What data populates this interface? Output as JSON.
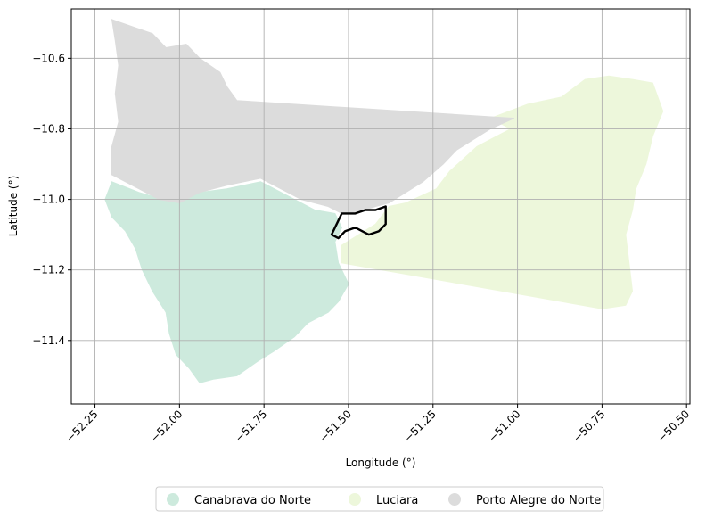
{
  "chart_data": {
    "type": "map",
    "xlabel": "Longitude (°)",
    "ylabel": "Latitude (°)",
    "xlim": [
      -52.32,
      -50.49
    ],
    "ylim": [
      -11.58,
      -10.46
    ],
    "xticks": [
      -52.25,
      -52.0,
      -51.75,
      -51.5,
      -51.25,
      -51.0,
      -50.75,
      -50.5
    ],
    "xtick_labels": [
      "−52.25",
      "−52.00",
      "−51.75",
      "−51.50",
      "−51.25",
      "−51.00",
      "−50.75",
      "−50.50"
    ],
    "yticks": [
      -10.6,
      -10.8,
      -11.0,
      -11.2,
      -11.4
    ],
    "ytick_labels": [
      "−10.6",
      "−10.8",
      "−11.0",
      "−11.2",
      "−11.4"
    ],
    "grid": true,
    "legend_position": "bottom-center",
    "regions": [
      {
        "name": "Canabrava do Norte",
        "color": "#cdeadd",
        "polygon": [
          [
            -52.2,
            -10.95
          ],
          [
            -52.12,
            -10.98
          ],
          [
            -52.05,
            -11.0
          ],
          [
            -52.0,
            -11.01
          ],
          [
            -51.94,
            -10.98
          ],
          [
            -51.86,
            -10.97
          ],
          [
            -51.76,
            -10.95
          ],
          [
            -51.68,
            -10.99
          ],
          [
            -51.6,
            -11.03
          ],
          [
            -51.54,
            -11.04
          ],
          [
            -51.52,
            -11.08
          ],
          [
            -51.54,
            -11.12
          ],
          [
            -51.53,
            -11.18
          ],
          [
            -51.5,
            -11.24
          ],
          [
            -51.53,
            -11.29
          ],
          [
            -51.56,
            -11.32
          ],
          [
            -51.62,
            -11.35
          ],
          [
            -51.66,
            -11.39
          ],
          [
            -51.72,
            -11.43
          ],
          [
            -51.77,
            -11.46
          ],
          [
            -51.83,
            -11.5
          ],
          [
            -51.9,
            -11.51
          ],
          [
            -51.94,
            -11.52
          ],
          [
            -51.97,
            -11.48
          ],
          [
            -52.01,
            -11.44
          ],
          [
            -52.03,
            -11.38
          ],
          [
            -52.04,
            -11.32
          ],
          [
            -52.08,
            -11.26
          ],
          [
            -52.11,
            -11.2
          ],
          [
            -52.13,
            -11.14
          ],
          [
            -52.16,
            -11.09
          ],
          [
            -52.2,
            -11.05
          ],
          [
            -52.22,
            -11.0
          ]
        ]
      },
      {
        "name": "Luciara",
        "color": "#edf7db",
        "polygon": [
          [
            -51.08,
            -10.77
          ],
          [
            -50.97,
            -10.73
          ],
          [
            -50.87,
            -10.71
          ],
          [
            -50.8,
            -10.66
          ],
          [
            -50.73,
            -10.65
          ],
          [
            -50.66,
            -10.66
          ],
          [
            -50.6,
            -10.67
          ],
          [
            -50.57,
            -10.75
          ],
          [
            -50.6,
            -10.82
          ],
          [
            -50.62,
            -10.9
          ],
          [
            -50.65,
            -10.97
          ],
          [
            -50.66,
            -11.03
          ],
          [
            -50.68,
            -11.1
          ],
          [
            -50.67,
            -11.18
          ],
          [
            -50.66,
            -11.26
          ],
          [
            -50.68,
            -11.3
          ],
          [
            -50.75,
            -11.31
          ],
          [
            -51.52,
            -11.18
          ],
          [
            -51.52,
            -11.13
          ],
          [
            -51.42,
            -11.07
          ],
          [
            -51.38,
            -11.02
          ],
          [
            -51.33,
            -11.01
          ],
          [
            -51.24,
            -10.97
          ],
          [
            -51.2,
            -10.92
          ],
          [
            -51.12,
            -10.85
          ],
          [
            -51.02,
            -10.8
          ]
        ]
      },
      {
        "name": "Porto Alegre do Norte",
        "color": "#dcdcdc",
        "polygon": [
          [
            -52.2,
            -10.49
          ],
          [
            -52.14,
            -10.51
          ],
          [
            -52.08,
            -10.53
          ],
          [
            -52.04,
            -10.57
          ],
          [
            -51.98,
            -10.56
          ],
          [
            -51.94,
            -10.6
          ],
          [
            -51.88,
            -10.64
          ],
          [
            -51.86,
            -10.68
          ],
          [
            -51.83,
            -10.72
          ],
          [
            -51.01,
            -10.77
          ],
          [
            -51.08,
            -10.8
          ],
          [
            -51.18,
            -10.86
          ],
          [
            -51.22,
            -10.9
          ],
          [
            -51.28,
            -10.95
          ],
          [
            -51.33,
            -10.98
          ],
          [
            -51.38,
            -11.01
          ],
          [
            -51.42,
            -11.02
          ],
          [
            -51.48,
            -11.04
          ],
          [
            -51.52,
            -11.04
          ],
          [
            -51.56,
            -11.02
          ],
          [
            -51.64,
            -11.0
          ],
          [
            -51.72,
            -10.96
          ],
          [
            -51.76,
            -10.94
          ],
          [
            -51.86,
            -10.96
          ],
          [
            -51.94,
            -10.98
          ],
          [
            -52.0,
            -11.01
          ],
          [
            -52.06,
            -11.0
          ],
          [
            -52.12,
            -10.97
          ],
          [
            -52.2,
            -10.93
          ],
          [
            -52.2,
            -10.85
          ],
          [
            -52.18,
            -10.78
          ],
          [
            -52.19,
            -10.7
          ],
          [
            -52.18,
            -10.62
          ],
          [
            -52.19,
            -10.55
          ]
        ]
      }
    ],
    "outline": {
      "color": "#000000",
      "polygon": [
        [
          -51.52,
          -11.04
        ],
        [
          -51.48,
          -11.04
        ],
        [
          -51.45,
          -11.03
        ],
        [
          -51.42,
          -11.03
        ],
        [
          -51.39,
          -11.02
        ],
        [
          -51.39,
          -11.07
        ],
        [
          -51.41,
          -11.09
        ],
        [
          -51.44,
          -11.1
        ],
        [
          -51.48,
          -11.08
        ],
        [
          -51.51,
          -11.09
        ],
        [
          -51.53,
          -11.11
        ],
        [
          -51.55,
          -11.1
        ]
      ]
    }
  }
}
